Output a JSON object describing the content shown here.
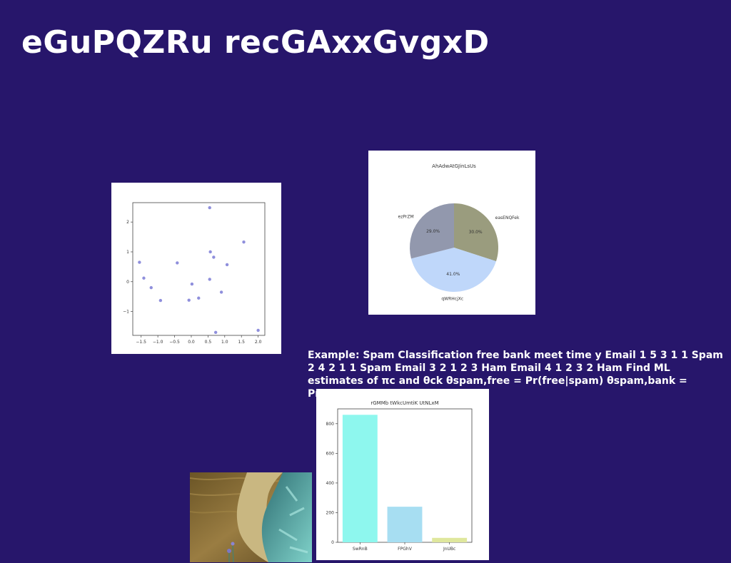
{
  "slide": {
    "title": "eGuPQZRu recGAxxGvgxD",
    "example_text": "Example: Spam Classification free bank meet time y Email 1 5 3 1 1 Spam 2 4 2 1 1 Spam Email 3 2 1 2 3 Ham Email 4 1 2 3 2 Ham Find ML estimates of πc and θck θspam,free = Pr(free|spam) θspam,bank = Pr(bank|spam)"
  },
  "chart_data": [
    {
      "type": "scatter",
      "title": "",
      "xlabel": "",
      "ylabel": "",
      "xlim": [
        -1.75,
        2.2
      ],
      "ylim": [
        -1.8,
        2.65
      ],
      "xticks": [
        "−1.5",
        "−1.0",
        "−0.5",
        "0.0",
        "0.5",
        "1.0",
        "1.5",
        "2.0"
      ],
      "yticks": [
        "−1",
        "0",
        "1",
        "2"
      ],
      "color": "#8f8fdc",
      "points": [
        {
          "x": -1.55,
          "y": 0.65
        },
        {
          "x": -1.42,
          "y": 0.12
        },
        {
          "x": -1.2,
          "y": -0.2
        },
        {
          "x": -0.92,
          "y": -0.63
        },
        {
          "x": -0.42,
          "y": 0.63
        },
        {
          "x": -0.07,
          "y": -0.62
        },
        {
          "x": 0.02,
          "y": -0.08
        },
        {
          "x": 0.22,
          "y": -0.55
        },
        {
          "x": 0.55,
          "y": 2.48
        },
        {
          "x": 0.57,
          "y": 1.0
        },
        {
          "x": 0.55,
          "y": 0.08
        },
        {
          "x": 0.67,
          "y": 0.82
        },
        {
          "x": 0.73,
          "y": -1.7
        },
        {
          "x": 0.9,
          "y": -0.35
        },
        {
          "x": 1.07,
          "y": 0.57
        },
        {
          "x": 1.57,
          "y": 1.33
        },
        {
          "x": 2.0,
          "y": -1.63
        }
      ]
    },
    {
      "type": "pie",
      "title": "AhAdwAtGJinLsUs",
      "slices": [
        {
          "label": "easENQFek",
          "value": 30.0,
          "pct_label": "30.0%",
          "color": "#9a9c7e"
        },
        {
          "label": "qWRHcjXc",
          "value": 41.0,
          "pct_label": "41.0%",
          "color": "#bfd7fa"
        },
        {
          "label": "ezPrZM",
          "value": 29.0,
          "pct_label": "29.0%",
          "color": "#9298ad"
        }
      ]
    },
    {
      "type": "bar",
      "title": "rGMMb tWkcUmtiK UtNLxM",
      "categories": [
        "SwRnB",
        "FPGhV",
        "JnUBc"
      ],
      "values": [
        860,
        240,
        30
      ],
      "colors": [
        "#8ef7ee",
        "#a7def2",
        "#dfe79d"
      ],
      "ylim": [
        0,
        900
      ],
      "yticks": [
        "0",
        "200",
        "400",
        "600",
        "800"
      ],
      "xlabel": "",
      "ylabel": ""
    }
  ],
  "photo": {
    "colors": {
      "water": "#8a6f3a",
      "sand": "#c7b47c",
      "foliage": "#4fa6a2",
      "flowers": "#7b77c7"
    }
  }
}
